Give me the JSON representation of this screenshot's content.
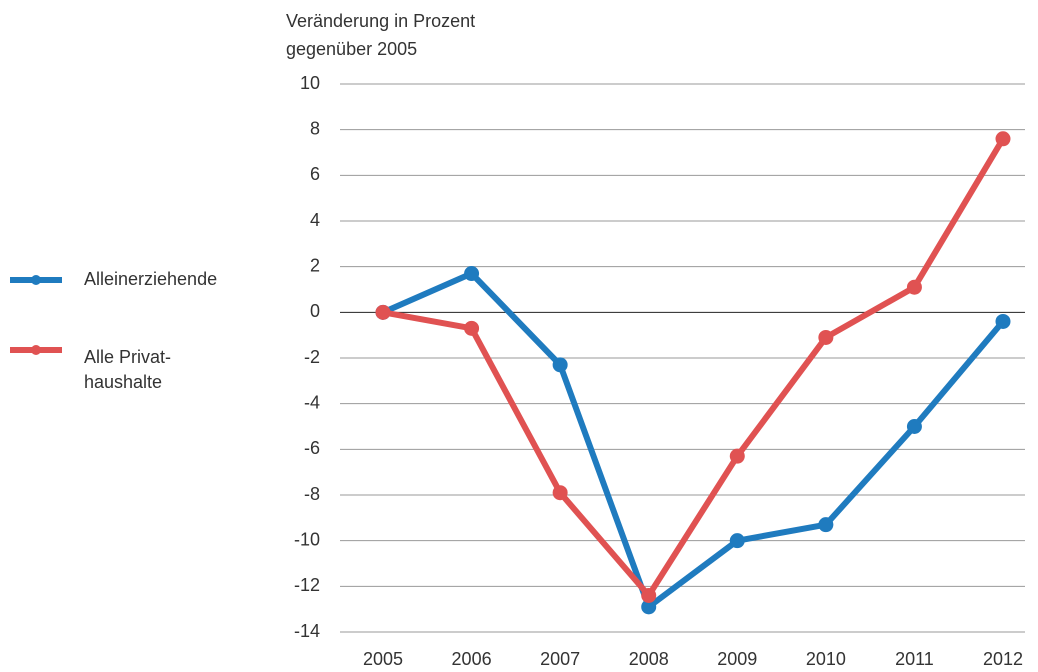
{
  "chart_data": {
    "type": "line",
    "y_label": [
      "Veränderung in Prozent",
      "gegenüber 2005"
    ],
    "categories": [
      "2005",
      "2006",
      "2007",
      "2008",
      "2009",
      "2010",
      "2011",
      "2012"
    ],
    "series": [
      {
        "name": "Alleinerziehende",
        "color": "#1f7bbf",
        "values": [
          0,
          1.7,
          -2.3,
          -12.9,
          -10.0,
          -9.3,
          -5.0,
          -0.4
        ]
      },
      {
        "name": "Alle Privat-\nhaushalte",
        "color": "#e05252",
        "values": [
          0,
          -0.7,
          -7.9,
          -12.4,
          -6.3,
          -1.1,
          1.1,
          7.6
        ]
      }
    ],
    "ylim": [
      -14,
      10
    ],
    "yticks": [
      -14,
      -12,
      -10,
      -8,
      -6,
      -4,
      -2,
      0,
      2,
      4,
      6,
      8,
      10
    ],
    "grid": true,
    "legend": "left"
  }
}
